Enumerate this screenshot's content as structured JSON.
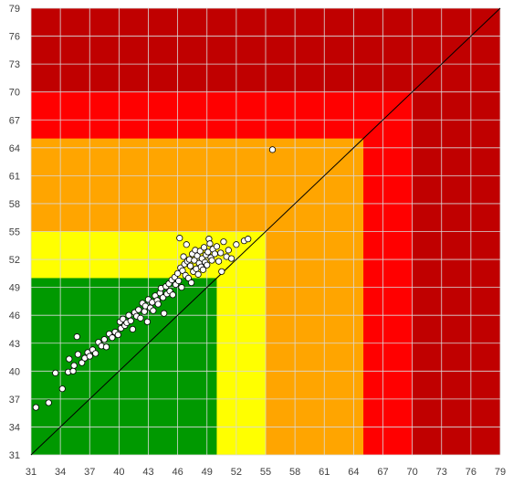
{
  "chart_data": {
    "type": "scatter",
    "title": "",
    "xlabel": "",
    "ylabel": "",
    "xlim": [
      31,
      79
    ],
    "ylim": [
      31,
      79
    ],
    "xticks": [
      "31",
      "34",
      "37",
      "40",
      "43",
      "46",
      "49",
      "52",
      "55",
      "58",
      "61",
      "64",
      "67",
      "70",
      "73",
      "76",
      "79"
    ],
    "yticks": [
      "31",
      "34",
      "37",
      "40",
      "43",
      "46",
      "49",
      "52",
      "55",
      "58",
      "61",
      "64",
      "67",
      "70",
      "73",
      "76",
      "79"
    ],
    "grid": true,
    "legend": "none",
    "zones": [
      {
        "upto": 79,
        "color": "#c00000"
      },
      {
        "upto": 70,
        "color": "#ff0000"
      },
      {
        "upto": 65,
        "color": "#ffa500"
      },
      {
        "upto": 55,
        "color": "#ffff00"
      },
      {
        "upto": 50,
        "color": "#009900"
      }
    ],
    "reference_line": {
      "from": [
        31,
        31
      ],
      "to": [
        79,
        79
      ],
      "color": "#000000"
    },
    "marker": {
      "fill": "#ffffff",
      "stroke": "#000000"
    },
    "points": [
      [
        31.5,
        36.1
      ],
      [
        32.8,
        36.6
      ],
      [
        33.5,
        39.8
      ],
      [
        34.2,
        38.1
      ],
      [
        34.8,
        39.9
      ],
      [
        34.9,
        41.3
      ],
      [
        35.3,
        40.0
      ],
      [
        35.4,
        40.6
      ],
      [
        35.7,
        43.7
      ],
      [
        35.8,
        41.8
      ],
      [
        36.2,
        40.9
      ],
      [
        36.5,
        41.4
      ],
      [
        36.8,
        42.0
      ],
      [
        37.0,
        41.6
      ],
      [
        37.3,
        42.3
      ],
      [
        37.6,
        41.9
      ],
      [
        37.9,
        43.1
      ],
      [
        38.2,
        42.7
      ],
      [
        38.5,
        43.4
      ],
      [
        38.7,
        42.6
      ],
      [
        39.0,
        44.0
      ],
      [
        39.3,
        43.6
      ],
      [
        39.6,
        44.2
      ],
      [
        39.9,
        43.9
      ],
      [
        40.1,
        45.3
      ],
      [
        40.2,
        44.6
      ],
      [
        40.4,
        45.6
      ],
      [
        40.6,
        44.9
      ],
      [
        40.8,
        45.2
      ],
      [
        41.0,
        46.0
      ],
      [
        41.2,
        45.4
      ],
      [
        41.4,
        44.5
      ],
      [
        41.6,
        46.3
      ],
      [
        41.8,
        45.9
      ],
      [
        42.0,
        46.6
      ],
      [
        42.2,
        45.7
      ],
      [
        42.4,
        47.3
      ],
      [
        42.6,
        46.4
      ],
      [
        42.7,
        47.0
      ],
      [
        42.9,
        45.3
      ],
      [
        43.0,
        47.7
      ],
      [
        43.2,
        46.8
      ],
      [
        43.4,
        47.4
      ],
      [
        43.5,
        46.5
      ],
      [
        43.7,
        48.1
      ],
      [
        43.9,
        47.6
      ],
      [
        44.0,
        47.2
      ],
      [
        44.2,
        48.4
      ],
      [
        44.3,
        48.9
      ],
      [
        44.5,
        47.9
      ],
      [
        44.6,
        46.2
      ],
      [
        44.8,
        49.1
      ],
      [
        44.9,
        48.3
      ],
      [
        45.1,
        49.4
      ],
      [
        45.2,
        48.6
      ],
      [
        45.4,
        49.8
      ],
      [
        45.5,
        48.2
      ],
      [
        45.7,
        50.1
      ],
      [
        45.8,
        49.3
      ],
      [
        46.0,
        50.5
      ],
      [
        46.1,
        49.7
      ],
      [
        46.2,
        54.3
      ],
      [
        46.3,
        51.1
      ],
      [
        46.4,
        49.0
      ],
      [
        46.5,
        50.8
      ],
      [
        46.6,
        52.3
      ],
      [
        46.7,
        51.5
      ],
      [
        46.8,
        50.3
      ],
      [
        46.9,
        53.6
      ],
      [
        47.0,
        51.8
      ],
      [
        47.1,
        50.0
      ],
      [
        47.2,
        52.0
      ],
      [
        47.3,
        51.3
      ],
      [
        47.4,
        49.5
      ],
      [
        47.5,
        52.6
      ],
      [
        47.6,
        50.7
      ],
      [
        47.7,
        51.9
      ],
      [
        47.8,
        53.0
      ],
      [
        47.9,
        51.0
      ],
      [
        48.0,
        52.4
      ],
      [
        48.1,
        50.4
      ],
      [
        48.2,
        51.6
      ],
      [
        48.3,
        52.9
      ],
      [
        48.4,
        51.2
      ],
      [
        48.5,
        52.1
      ],
      [
        48.6,
        50.9
      ],
      [
        48.7,
        53.3
      ],
      [
        48.8,
        51.7
      ],
      [
        48.9,
        52.5
      ],
      [
        49.0,
        51.4
      ],
      [
        49.1,
        52.8
      ],
      [
        49.2,
        54.2
      ],
      [
        49.3,
        53.7
      ],
      [
        49.4,
        52.2
      ],
      [
        49.5,
        51.9
      ],
      [
        49.6,
        53.1
      ],
      [
        49.8,
        52.6
      ],
      [
        50.0,
        53.4
      ],
      [
        50.2,
        51.8
      ],
      [
        50.4,
        52.7
      ],
      [
        50.5,
        50.7
      ],
      [
        50.7,
        53.9
      ],
      [
        51.0,
        52.3
      ],
      [
        51.2,
        53.0
      ],
      [
        51.5,
        52.1
      ],
      [
        52.0,
        53.6
      ],
      [
        52.8,
        54.0
      ],
      [
        53.2,
        54.2
      ],
      [
        55.7,
        63.8
      ]
    ]
  }
}
